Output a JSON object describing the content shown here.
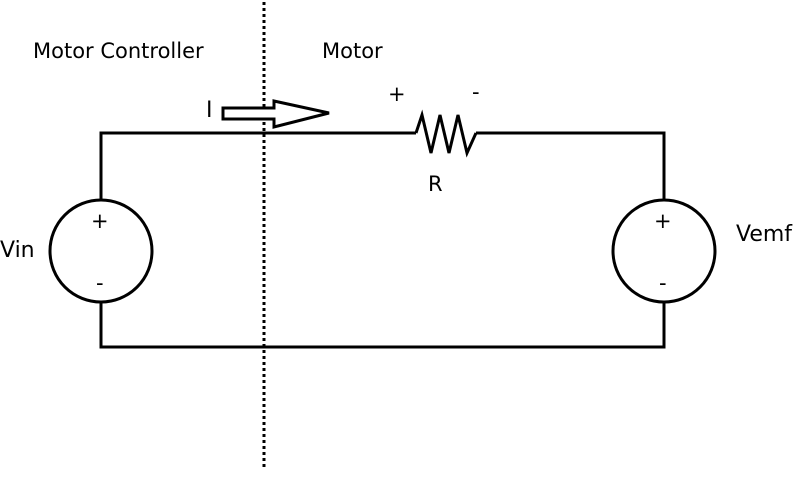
{
  "labels": {
    "left_region": "Motor Controller",
    "right_region": "Motor",
    "current": "I",
    "resistor": "R",
    "resistor_plus": "+",
    "resistor_minus": "-",
    "vin": "Vin",
    "vin_plus": "+",
    "vin_minus": "-",
    "vemf": "Vemf",
    "vemf_plus": "+",
    "vemf_minus": "-"
  },
  "colors": {
    "stroke": "#000000",
    "background": "#ffffff"
  }
}
